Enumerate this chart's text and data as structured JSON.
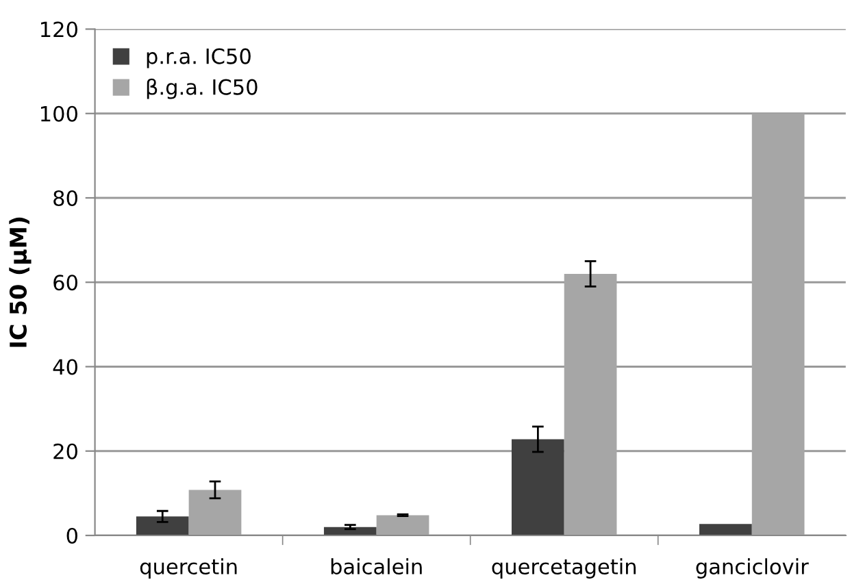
{
  "chart_data": {
    "type": "bar",
    "ylabel": "IC 50 (µM)",
    "categories": [
      "quercetin",
      "baicalein",
      "quercetagetin",
      "ganciclovir"
    ],
    "series": [
      {
        "name": "p.r.a. IC50",
        "color": "#404040",
        "values": [
          4.5,
          2.0,
          22.8,
          2.7
        ],
        "errors": [
          1.3,
          0.5,
          3,
          null
        ]
      },
      {
        "name": "β.g.a. IC50",
        "color": "#a6a6a6",
        "values": [
          10.8,
          4.8,
          62,
          100
        ],
        "errors": [
          2,
          0.2,
          3,
          null
        ]
      }
    ],
    "ylim": [
      0,
      120
    ],
    "yticks": [
      0,
      20,
      40,
      60,
      80,
      100,
      120
    ],
    "grid": "y",
    "legend": "top left"
  }
}
